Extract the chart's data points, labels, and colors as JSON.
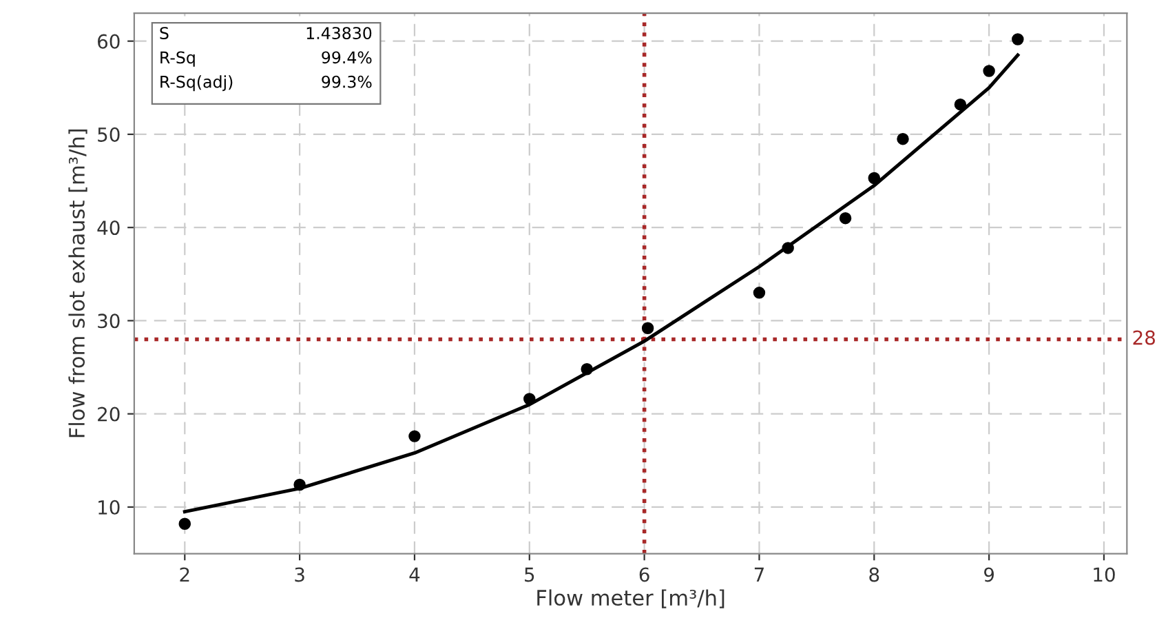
{
  "chart_data": {
    "type": "scatter",
    "xlabel": "Flow meter [m³/h]",
    "ylabel": "Flow from slot exhaust [m³/h]",
    "xlim": [
      1.56,
      10.2
    ],
    "ylim": [
      5,
      63
    ],
    "xticks": [
      2,
      3,
      4,
      5,
      6,
      7,
      8,
      9,
      10
    ],
    "yticks": [
      10,
      20,
      30,
      40,
      50,
      60
    ],
    "grid": true,
    "marker": "circle",
    "series": [
      {
        "color": "#000000",
        "x": [
          2,
          3,
          4,
          5,
          5.5,
          6.03,
          7.0,
          7.25,
          7.75,
          8.0,
          8.25,
          8.75,
          9.0,
          9.25
        ],
        "values": [
          8.2,
          12.4,
          17.6,
          21.6,
          24.8,
          29.2,
          33.0,
          37.8,
          41.0,
          45.3,
          49.5,
          53.2,
          56.8,
          60.2
        ]
      },
      {
        "type": "line",
        "color": "#000000",
        "marker": "none",
        "line_style": "solid",
        "x": [
          2.0,
          2.2,
          3.0,
          4.0,
          5.0,
          6.0,
          7.0,
          8.0,
          9.0,
          9.25
        ],
        "values": [
          9.5,
          10.0,
          12.0,
          15.8,
          21.0,
          27.8,
          35.8,
          44.5,
          55.0,
          58.5
        ]
      }
    ],
    "ref_lines": [
      {
        "axis": "x",
        "value": 6,
        "color": "#a82828",
        "line_style": "dotted"
      },
      {
        "axis": "y",
        "value": 28,
        "label": "28",
        "color": "#a82828",
        "line_style": "dotted"
      }
    ],
    "annotations": [
      "S 1.43830",
      "R-Sq 99.4%",
      "R-Sq(adj) 99.3%"
    ]
  }
}
